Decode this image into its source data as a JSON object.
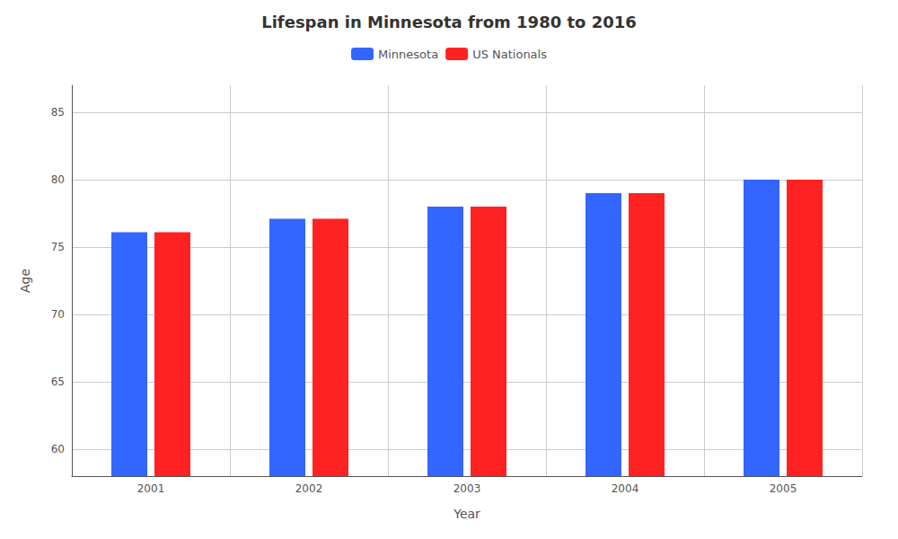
{
  "chart_data": {
    "type": "bar",
    "title": "Lifespan in Minnesota from 1980 to 2016",
    "xlabel": "Year",
    "ylabel": "Age",
    "categories": [
      "2001",
      "2002",
      "2003",
      "2004",
      "2005"
    ],
    "series": [
      {
        "name": "Minnesota",
        "color": "#3366ff",
        "values": [
          76.1,
          77.1,
          78.0,
          79.0,
          80.0
        ]
      },
      {
        "name": "US Nationals",
        "color": "#ff2222",
        "values": [
          76.1,
          77.1,
          78.0,
          79.0,
          80.0
        ]
      }
    ],
    "ylim": [
      58,
      87
    ],
    "yticks": [
      60,
      65,
      70,
      75,
      80,
      85
    ],
    "grid": true,
    "legend": "top"
  }
}
